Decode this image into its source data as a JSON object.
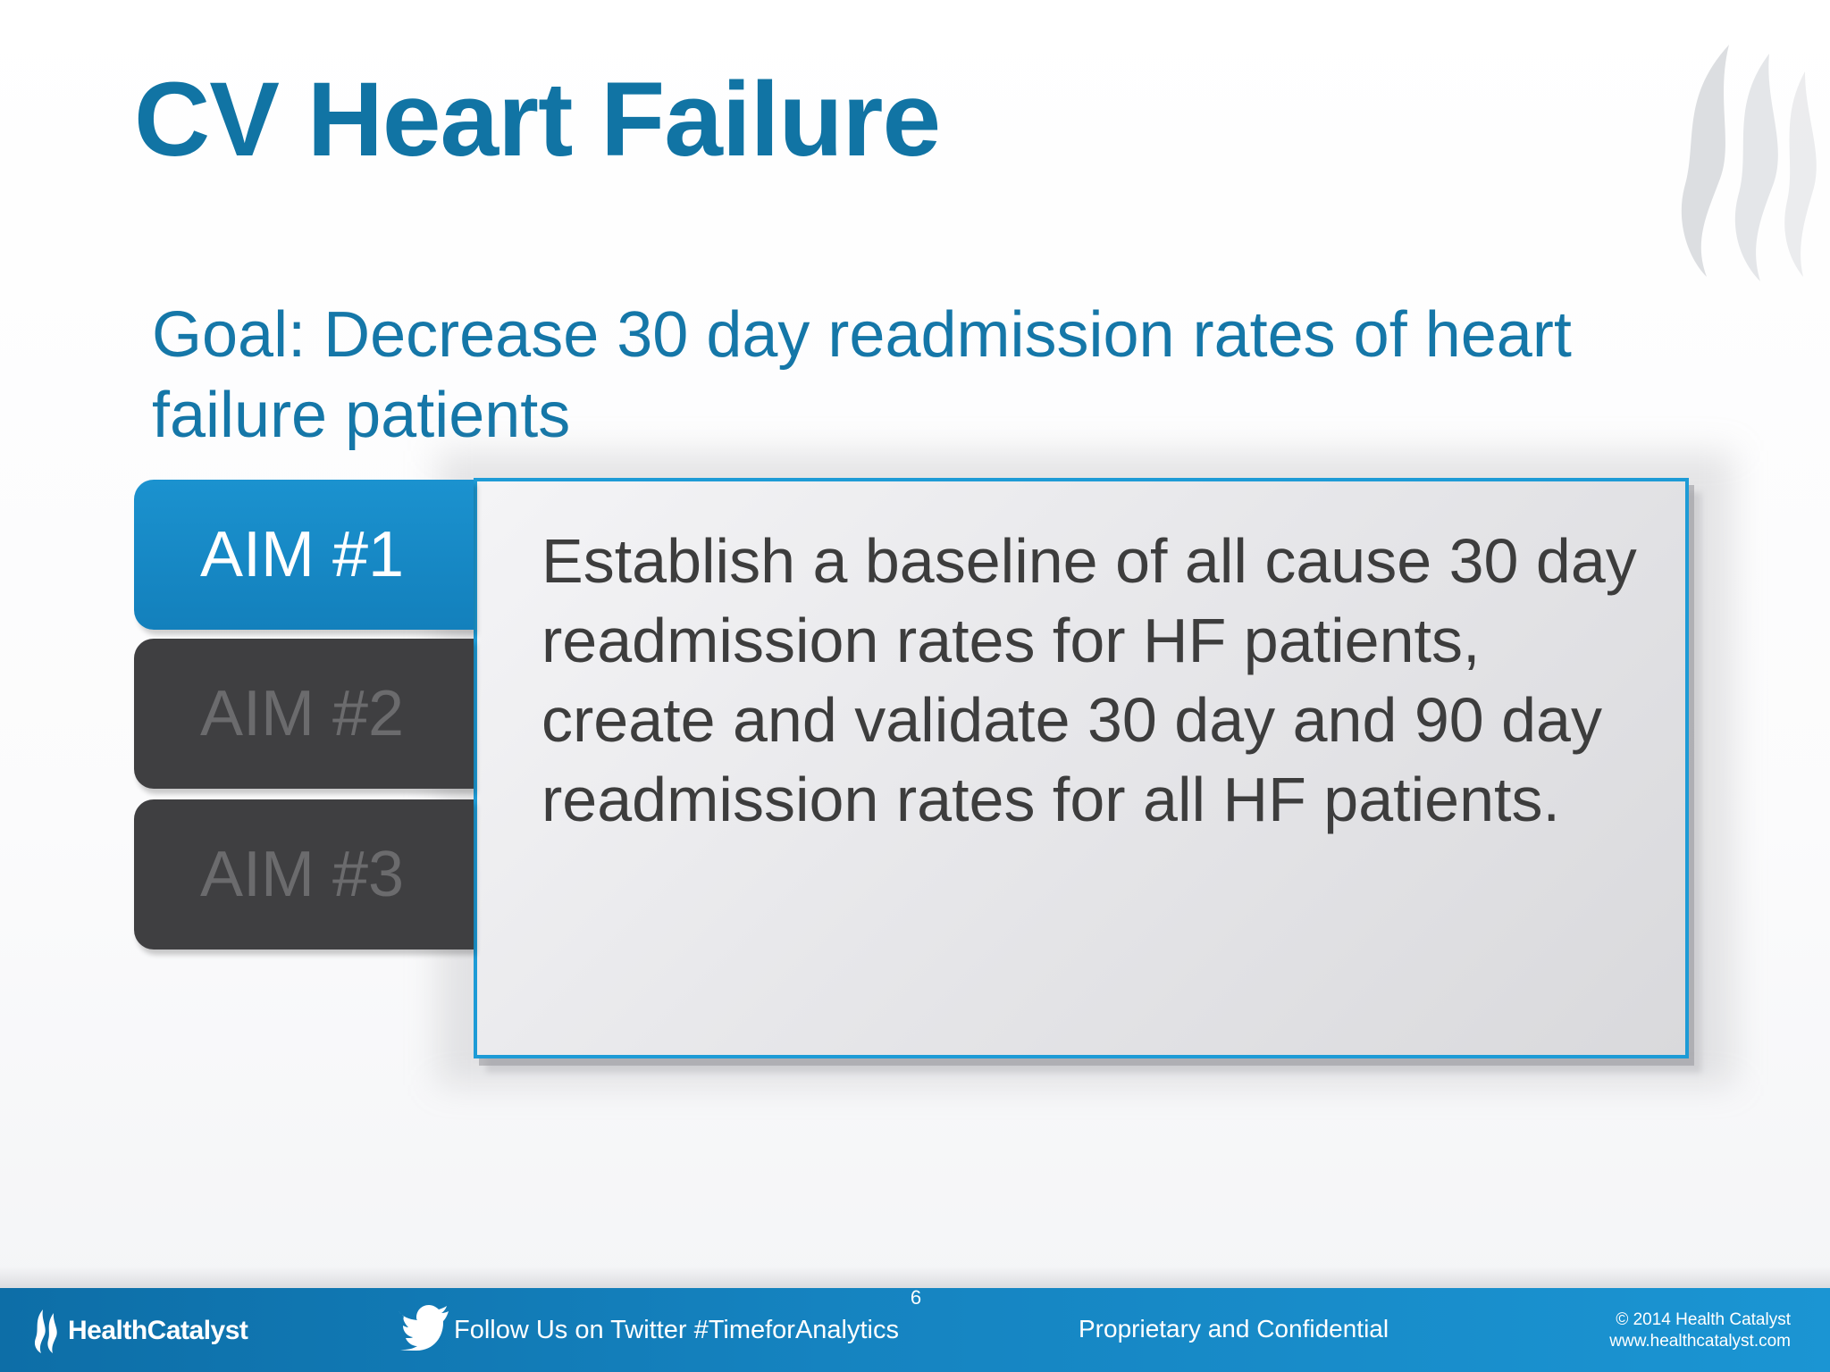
{
  "slide": {
    "title": "CV Heart Failure",
    "goal": "Goal: Decrease 30 day readmission rates of heart failure patients",
    "tabs": [
      {
        "label": "AIM #1",
        "active": true
      },
      {
        "label": "AIM #2",
        "active": false
      },
      {
        "label": "AIM #3",
        "active": false
      }
    ],
    "content": "Establish a baseline of all cause 30 day readmission rates for HF patients, create and validate 30 day and 90 day readmission rates for all HF patients."
  },
  "footer": {
    "logo_text": "HealthCatalyst",
    "twitter_text": "Follow Us on Twitter #TimeforAnalytics",
    "page_number": "6",
    "confidential": "Proprietary and Confidential",
    "copyright": "© 2014 Health Catalyst",
    "website": "www.healthcatalyst.com"
  },
  "colors": {
    "title_blue": "#1174a4",
    "accent_blue": "#1d9bd6",
    "inactive_tab": "#3f3f41",
    "footer_blue": "#1583c0"
  },
  "icons": {
    "watermark": "flame-logo-icon",
    "footer_logo": "health-catalyst-flame-icon",
    "twitter": "twitter-bird-icon"
  }
}
